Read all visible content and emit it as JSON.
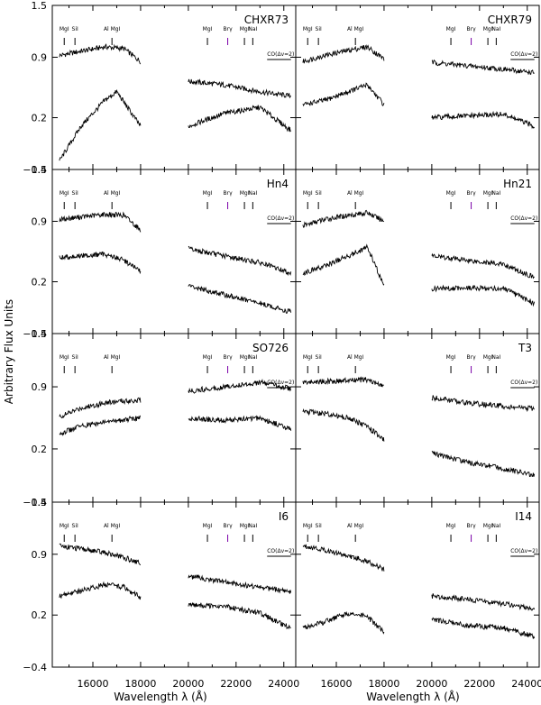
{
  "figure": {
    "ylabel": "Arbitrary Flux Units",
    "xlabel": "Wavelength λ (Å)"
  },
  "chart_data": {
    "type": "line",
    "layout": "4 rows x 2 columns of spectra panels",
    "xlim": [
      14300,
      24500
    ],
    "ylim": [
      -0.4,
      1.5
    ],
    "xticks": [
      16000,
      18000,
      20000,
      22000,
      24000
    ],
    "xtick_labels": [
      "16000",
      "18000",
      "20000",
      "22000",
      "24000"
    ],
    "yticks": [
      -0.4,
      0.2,
      0.9,
      1.5
    ],
    "ytick_labels": [
      "−0.4",
      "0.2",
      "0.9",
      "1.5"
    ],
    "ytick_labels_top_rows": [
      "−0.4",
      "0.2",
      "0.9",
      "1.5"
    ],
    "left_marker_labels": {
      "top": [
        "MgI",
        "SiI",
        "Al MgI"
      ],
      "bottom": [
        "AlI",
        "MgI"
      ]
    },
    "right_marker_labels": {
      "top": [
        "MgI",
        "Brγ",
        "MgI",
        "NaI"
      ],
      "bottom": [
        "AlI",
        "NaI",
        "CaI"
      ]
    },
    "co_label": "CO(Δv=2)",
    "gap": [
      18100,
      19900
    ],
    "panels": [
      {
        "name": "CHXR73",
        "series": [
          {
            "name": "upper",
            "H": [
              [
                14600,
                0.92
              ],
              [
                15500,
                0.97
              ],
              [
                16500,
                1.02
              ],
              [
                17300,
                1.0
              ],
              [
                18000,
                0.85
              ]
            ],
            "K": [
              [
                20000,
                0.62
              ],
              [
                21500,
                0.58
              ],
              [
                23000,
                0.5
              ],
              [
                24300,
                0.45
              ]
            ]
          },
          {
            "name": "lower",
            "H": [
              [
                14600,
                -0.3
              ],
              [
                15500,
                0.1
              ],
              [
                16500,
                0.4
              ],
              [
                17000,
                0.5
              ],
              [
                18000,
                0.1
              ]
            ],
            "K": [
              [
                20000,
                0.1
              ],
              [
                21500,
                0.25
              ],
              [
                23000,
                0.32
              ],
              [
                24300,
                0.05
              ]
            ]
          }
        ]
      },
      {
        "name": "CHXR79",
        "series": [
          {
            "name": "upper",
            "H": [
              [
                14600,
                0.85
              ],
              [
                15500,
                0.92
              ],
              [
                16500,
                0.98
              ],
              [
                17300,
                1.02
              ],
              [
                18000,
                0.88
              ]
            ],
            "K": [
              [
                20000,
                0.84
              ],
              [
                21500,
                0.8
              ],
              [
                23000,
                0.76
              ],
              [
                24300,
                0.72
              ]
            ]
          },
          {
            "name": "lower",
            "H": [
              [
                14600,
                0.35
              ],
              [
                15500,
                0.4
              ],
              [
                16500,
                0.5
              ],
              [
                17300,
                0.58
              ],
              [
                18000,
                0.35
              ]
            ],
            "K": [
              [
                20000,
                0.2
              ],
              [
                21500,
                0.22
              ],
              [
                23000,
                0.24
              ],
              [
                24300,
                0.1
              ]
            ]
          }
        ]
      },
      {
        "name": "Hn4",
        "series": [
          {
            "name": "upper",
            "H": [
              [
                14600,
                0.92
              ],
              [
                15500,
                0.95
              ],
              [
                16500,
                0.98
              ],
              [
                17300,
                0.97
              ],
              [
                18000,
                0.8
              ]
            ],
            "K": [
              [
                20000,
                0.58
              ],
              [
                21500,
                0.5
              ],
              [
                23000,
                0.42
              ],
              [
                24300,
                0.3
              ]
            ]
          },
          {
            "name": "lower",
            "H": [
              [
                14600,
                0.48
              ],
              [
                15500,
                0.5
              ],
              [
                16500,
                0.52
              ],
              [
                17300,
                0.45
              ],
              [
                18000,
                0.32
              ]
            ],
            "K": [
              [
                20000,
                0.15
              ],
              [
                21500,
                0.05
              ],
              [
                23000,
                -0.05
              ],
              [
                24300,
                -0.15
              ]
            ]
          }
        ]
      },
      {
        "name": "Hn21",
        "series": [
          {
            "name": "upper",
            "H": [
              [
                14600,
                0.85
              ],
              [
                15500,
                0.92
              ],
              [
                16500,
                0.97
              ],
              [
                17300,
                1.0
              ],
              [
                18000,
                0.9
              ]
            ],
            "K": [
              [
                20000,
                0.5
              ],
              [
                21500,
                0.45
              ],
              [
                23000,
                0.4
              ],
              [
                24300,
                0.25
              ]
            ]
          },
          {
            "name": "lower",
            "H": [
              [
                14600,
                0.3
              ],
              [
                15500,
                0.38
              ],
              [
                16500,
                0.5
              ],
              [
                17300,
                0.6
              ],
              [
                18000,
                0.15
              ]
            ],
            "K": [
              [
                20000,
                0.12
              ],
              [
                21500,
                0.13
              ],
              [
                23000,
                0.12
              ],
              [
                24300,
                -0.05
              ]
            ]
          }
        ]
      },
      {
        "name": "SO726",
        "series": [
          {
            "name": "upper",
            "H": [
              [
                14600,
                0.56
              ],
              [
                15500,
                0.66
              ],
              [
                16500,
                0.72
              ],
              [
                17300,
                0.74
              ],
              [
                18000,
                0.75
              ]
            ],
            "K": [
              [
                20000,
                0.85
              ],
              [
                21500,
                0.9
              ],
              [
                23000,
                0.95
              ],
              [
                24300,
                0.88
              ]
            ]
          },
          {
            "name": "lower",
            "H": [
              [
                14600,
                0.37
              ],
              [
                15500,
                0.46
              ],
              [
                16500,
                0.5
              ],
              [
                17300,
                0.53
              ],
              [
                18000,
                0.55
              ]
            ],
            "K": [
              [
                20000,
                0.55
              ],
              [
                21500,
                0.52
              ],
              [
                23000,
                0.55
              ],
              [
                24300,
                0.42
              ]
            ]
          }
        ]
      },
      {
        "name": "T3",
        "series": [
          {
            "name": "upper",
            "H": [
              [
                14600,
                0.95
              ],
              [
                15500,
                0.96
              ],
              [
                16500,
                0.97
              ],
              [
                17300,
                0.98
              ],
              [
                18000,
                0.9
              ]
            ],
            "K": [
              [
                20000,
                0.78
              ],
              [
                21500,
                0.72
              ],
              [
                23000,
                0.68
              ],
              [
                24300,
                0.65
              ]
            ]
          },
          {
            "name": "lower",
            "H": [
              [
                14600,
                0.62
              ],
              [
                15500,
                0.6
              ],
              [
                16500,
                0.55
              ],
              [
                17300,
                0.45
              ],
              [
                18000,
                0.3
              ]
            ],
            "K": [
              [
                20000,
                0.15
              ],
              [
                21500,
                0.05
              ],
              [
                23000,
                -0.02
              ],
              [
                24300,
                -0.1
              ]
            ]
          }
        ]
      },
      {
        "name": "I6",
        "series": [
          {
            "name": "upper",
            "H": [
              [
                14600,
                1.0
              ],
              [
                15500,
                0.96
              ],
              [
                16500,
                0.92
              ],
              [
                17300,
                0.86
              ],
              [
                18000,
                0.8
              ]
            ],
            "K": [
              [
                20000,
                0.65
              ],
              [
                21500,
                0.58
              ],
              [
                23000,
                0.52
              ],
              [
                24300,
                0.47
              ]
            ]
          },
          {
            "name": "lower",
            "H": [
              [
                14600,
                0.42
              ],
              [
                15500,
                0.48
              ],
              [
                16500,
                0.55
              ],
              [
                17300,
                0.52
              ],
              [
                18000,
                0.4
              ]
            ],
            "K": [
              [
                20000,
                0.32
              ],
              [
                21500,
                0.3
              ],
              [
                23000,
                0.22
              ],
              [
                24300,
                0.05
              ]
            ]
          }
        ]
      },
      {
        "name": "I14",
        "series": [
          {
            "name": "upper",
            "H": [
              [
                14600,
                1.0
              ],
              [
                15500,
                0.95
              ],
              [
                16500,
                0.88
              ],
              [
                17300,
                0.82
              ],
              [
                18000,
                0.72
              ]
            ],
            "K": [
              [
                20000,
                0.42
              ],
              [
                21500,
                0.38
              ],
              [
                23000,
                0.33
              ],
              [
                24300,
                0.27
              ]
            ]
          },
          {
            "name": "lower",
            "H": [
              [
                14600,
                0.05
              ],
              [
                15500,
                0.12
              ],
              [
                16500,
                0.22
              ],
              [
                17300,
                0.18
              ],
              [
                18000,
                0.0
              ]
            ],
            "K": [
              [
                20000,
                0.15
              ],
              [
                21500,
                0.08
              ],
              [
                23000,
                0.05
              ],
              [
                24300,
                -0.05
              ]
            ]
          }
        ]
      }
    ]
  }
}
